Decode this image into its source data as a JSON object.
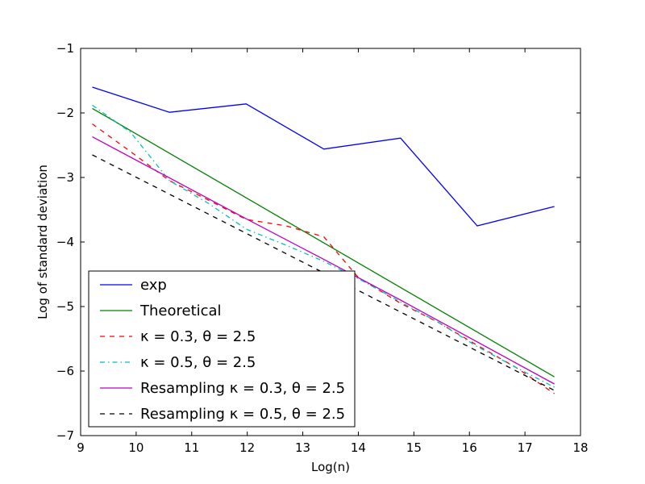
{
  "chart_data": {
    "type": "line",
    "title": "",
    "xlabel": "Log(n)",
    "ylabel": "Log of standard deviation",
    "xlim": [
      9,
      18
    ],
    "ylim": [
      -7,
      -1
    ],
    "xticks": [
      9,
      10,
      11,
      12,
      13,
      14,
      15,
      16,
      17,
      18
    ],
    "yticks": [
      -7,
      -6,
      -5,
      -4,
      -3,
      -2,
      -1
    ],
    "xtick_labels": [
      "9",
      "10",
      "11",
      "12",
      "13",
      "14",
      "15",
      "16",
      "17",
      "18"
    ],
    "ytick_labels": [
      "−7",
      "−6",
      "−5",
      "−4",
      "−3",
      "−2",
      "−1"
    ],
    "grid": false,
    "legend_position": "lower-left",
    "series": [
      {
        "name": "exp",
        "legend_label": "exp",
        "color": "#0000ff",
        "dash": "solid",
        "x": [
          9.21,
          10.6,
          11.98,
          13.38,
          14.76,
          16.14,
          17.53
        ],
        "y": [
          -1.6,
          -1.99,
          -1.86,
          -2.56,
          -2.39,
          -3.75,
          -3.45
        ]
      },
      {
        "name": "Theoretical",
        "legend_label": "Theoretical",
        "color": "#008000",
        "dash": "solid",
        "x": [
          9.21,
          17.53
        ],
        "y": [
          -1.93,
          -6.09
        ]
      },
      {
        "name": "kappa=0.3, theta=2.5",
        "legend_label": "κ = 0.3, θ = 2.5",
        "color": "#ff0000",
        "dash": "dashed",
        "x": [
          9.21,
          9.9,
          10.6,
          11.3,
          11.98,
          12.7,
          13.38,
          14.0,
          14.76,
          15.45,
          16.14,
          16.85,
          17.53
        ],
        "y": [
          -2.17,
          -2.6,
          -3.05,
          -3.35,
          -3.65,
          -3.75,
          -3.92,
          -4.55,
          -4.95,
          -5.25,
          -5.6,
          -5.95,
          -6.35
        ]
      },
      {
        "name": "kappa=0.5, theta=2.5",
        "legend_label": "κ = 0.5, θ = 2.5",
        "color": "#00bfbf",
        "dash": "dashdot",
        "x": [
          9.21,
          9.9,
          10.6,
          11.3,
          11.98,
          12.7,
          13.38,
          14.07,
          14.76,
          15.45,
          16.14,
          16.85,
          17.53
        ],
        "y": [
          -1.88,
          -2.3,
          -3.05,
          -3.4,
          -3.8,
          -4.05,
          -4.3,
          -4.6,
          -4.93,
          -5.25,
          -5.62,
          -5.95,
          -6.25
        ]
      },
      {
        "name": "Resampling kappa=0.3, theta=2.5",
        "legend_label": "Resampling κ = 0.3, θ = 2.5",
        "color": "#bf00bf",
        "dash": "solid",
        "x": [
          9.21,
          11.98,
          13.38,
          14.76,
          17.53
        ],
        "y": [
          -2.37,
          -3.64,
          -4.27,
          -4.9,
          -6.2
        ]
      },
      {
        "name": "Resampling kappa=0.5, theta=2.5",
        "legend_label": "Resampling κ = 0.5, θ = 2.5",
        "color": "#000000",
        "dash": "dashed",
        "x": [
          9.21,
          17.53
        ],
        "y": [
          -2.65,
          -6.3
        ]
      }
    ]
  }
}
